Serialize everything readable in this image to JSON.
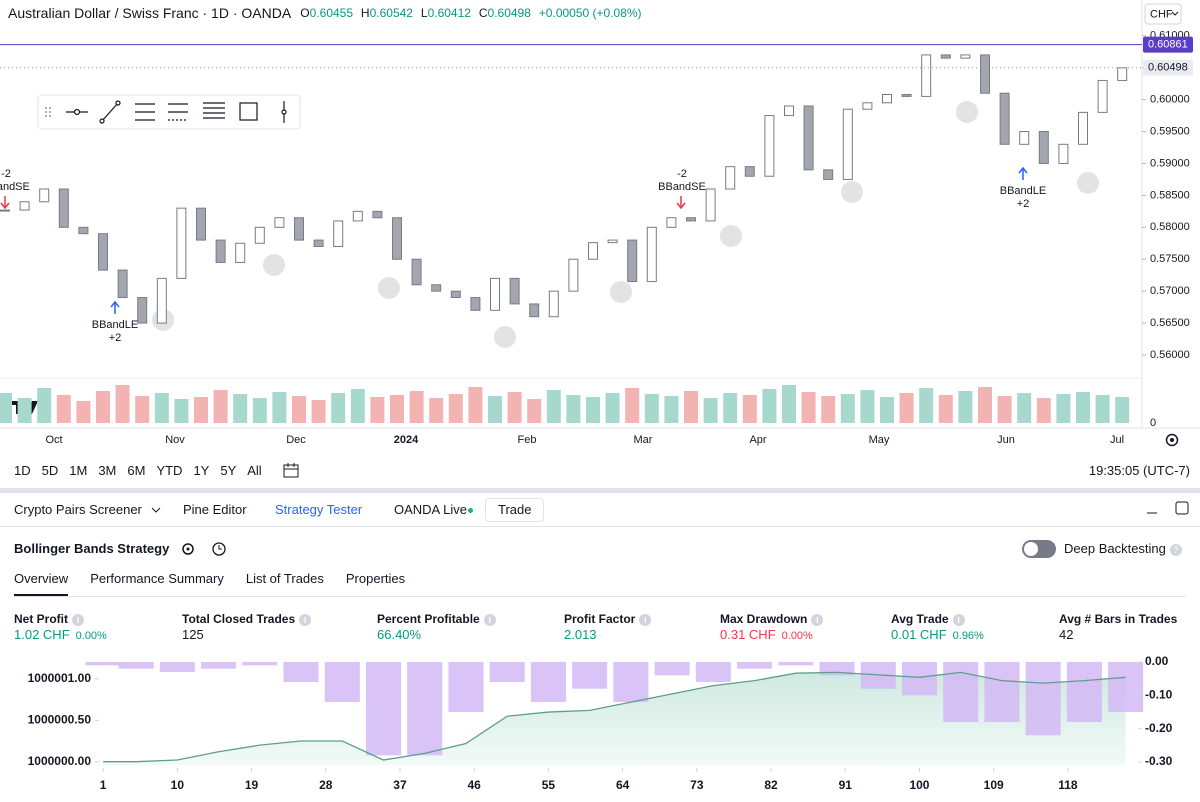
{
  "header": {
    "symbol": "Australian Dollar / Swiss Franc · 1D · OANDA",
    "ohlc": [
      {
        "key": "O",
        "value": "0.60455"
      },
      {
        "key": "H",
        "value": "0.60542"
      },
      {
        "key": "L",
        "value": "0.60412"
      },
      {
        "key": "C",
        "value": "0.60498"
      }
    ],
    "change": "+0.00050 (+0.08%)",
    "currency": "CHF"
  },
  "chart_data": [
    {
      "type": "candlestick",
      "closes": [
        0.5827,
        0.584,
        0.586,
        0.58,
        0.579,
        0.5733,
        0.569,
        0.565,
        0.572,
        0.583,
        0.578,
        0.5745,
        0.5775,
        0.58,
        0.5815,
        0.578,
        0.577,
        0.581,
        0.5825,
        0.5815,
        0.575,
        0.571,
        0.57,
        0.569,
        0.567,
        0.572,
        0.568,
        0.566,
        0.57,
        0.575,
        0.5776,
        0.578,
        0.5715,
        0.58,
        0.5815,
        0.581,
        0.586,
        0.5895,
        0.588,
        0.5975,
        0.599,
        0.589,
        0.5875,
        0.5985,
        0.5995,
        0.6008,
        0.6005,
        0.607,
        0.6065,
        0.607,
        0.601,
        0.593,
        0.595,
        0.59,
        0.593,
        0.598,
        0.603,
        0.60498
      ],
      "up_color": "#ffffff",
      "down_color": "#a3a6af",
      "border_color": "#787b86",
      "ylim": [
        0.5564,
        0.6156
      ],
      "yticks": [
        {
          "value": 0.61,
          "label": "0.61000"
        },
        {
          "value": 0.605,
          "label": "0.60500"
        },
        {
          "value": 0.6,
          "label": "0.60000"
        },
        {
          "value": 0.595,
          "label": "0.59500"
        },
        {
          "value": 0.59,
          "label": "0.59000"
        },
        {
          "value": 0.585,
          "label": "0.58500"
        },
        {
          "value": 0.58,
          "label": "0.58000"
        },
        {
          "value": 0.575,
          "label": "0.57500"
        },
        {
          "value": 0.57,
          "label": "0.57000"
        },
        {
          "value": 0.565,
          "label": "0.56500"
        },
        {
          "value": 0.56,
          "label": "0.56000"
        }
      ],
      "price_labels": [
        {
          "value": 0.60861,
          "label": "0.60861",
          "color": "#5b3cc4"
        },
        {
          "value": 0.60498,
          "label": "0.60498",
          "color": "#e9ebf0"
        }
      ],
      "volume": {
        "values": [
          30,
          25,
          35,
          28,
          22,
          32,
          38,
          27,
          30,
          24,
          26,
          33,
          29,
          25,
          31,
          27,
          23,
          30,
          34,
          26,
          28,
          32,
          25,
          29,
          36,
          27,
          31,
          24,
          33,
          28,
          26,
          30,
          35,
          29,
          27,
          32,
          25,
          30,
          28,
          34,
          38,
          31,
          27,
          29,
          33,
          26,
          30,
          35,
          28,
          32,
          36,
          27,
          30,
          25,
          29,
          31,
          28,
          26
        ],
        "up_color": "#a7d8ce",
        "down_color": "#f4b3b3",
        "ylim": [
          0,
          50
        ],
        "yticks": [
          0
        ]
      },
      "x_labels": [
        "Oct",
        "Nov",
        "Dec",
        "2024",
        "Feb",
        "Mar",
        "Apr",
        "May",
        "Jun",
        "Jul"
      ],
      "annotations": [
        {
          "lines": [
            "-2",
            "BBandSE"
          ]
        },
        {
          "lines": [
            "BBandLE",
            "+2"
          ]
        },
        {
          "lines": [
            "-2",
            "BBandSE"
          ]
        },
        {
          "lines": [
            "BBandLE",
            "+2"
          ]
        }
      ]
    },
    {
      "type": "equity",
      "x": [
        1,
        5,
        10,
        15,
        20,
        25,
        30,
        35,
        40,
        45,
        50,
        55,
        60,
        65,
        70,
        75,
        80,
        85,
        90,
        95,
        100,
        105,
        110,
        115,
        120,
        125
      ],
      "equity": {
        "values": [
          1000000.0,
          1000000.0,
          1000000.02,
          1000000.12,
          1000000.2,
          1000000.25,
          1000000.25,
          1000000.02,
          1000000.1,
          1000000.22,
          1000000.55,
          1000000.6,
          1000000.62,
          1000000.72,
          1000000.82,
          1000000.92,
          1000000.98,
          1000001.07,
          1000001.08,
          1000001.05,
          1000001.02,
          1000001.08,
          1000000.98,
          1000000.95,
          1000000.98,
          1000001.02
        ],
        "color": "#5f9e8c"
      },
      "drawdown": {
        "values": [
          -0.01,
          -0.02,
          -0.03,
          -0.02,
          -0.01,
          -0.06,
          -0.12,
          -0.28,
          -0.28,
          -0.15,
          -0.06,
          -0.12,
          -0.08,
          -0.12,
          -0.04,
          -0.06,
          -0.02,
          -0.01,
          -0.04,
          -0.08,
          -0.1,
          -0.18,
          -0.18,
          -0.22,
          -0.18,
          -0.15
        ],
        "color": "#d3b9f6",
        "axis": "y2"
      },
      "xlim": [
        0.5,
        126.5
      ],
      "xticks": [
        1,
        10,
        19,
        28,
        37,
        46,
        55,
        64,
        73,
        82,
        91,
        100,
        109,
        118
      ],
      "ylim": [
        999999.96,
        1000001.29
      ],
      "yticks": [
        {
          "value": 1000000,
          "label": "1000000.00"
        },
        {
          "value": 1000000.5,
          "label": "1000000.50"
        },
        {
          "value": 1000001,
          "label": "1000001.00"
        }
      ],
      "y2lim": [
        -0.309,
        0.021
      ],
      "y2ticks": [
        {
          "value": 0,
          "label": "0.00"
        },
        {
          "value": -0.1,
          "label": "-0.10"
        },
        {
          "value": -0.2,
          "label": "-0.20"
        },
        {
          "value": -0.3,
          "label": "-0.30"
        }
      ]
    }
  ],
  "ranges": [
    "1D",
    "5D",
    "1M",
    "3M",
    "6M",
    "YTD",
    "1Y",
    "5Y",
    "All"
  ],
  "clock": "19:35:05 (UTC-7)",
  "tabs": [
    "Crypto Pairs Screener",
    "Pine Editor",
    "Strategy Tester",
    "OANDA Live",
    "Trade"
  ],
  "strategy": {
    "name": "Bollinger Bands Strategy",
    "deep_backtesting": "Deep Backtesting",
    "subtabs": [
      "Overview",
      "Performance Summary",
      "List of Trades",
      "Properties"
    ]
  },
  "metrics": [
    {
      "label": "Net Profit",
      "value": "1.02 CHF",
      "percent": "0.00%"
    },
    {
      "label": "Total Closed Trades",
      "value": "125"
    },
    {
      "label": "Percent Profitable",
      "value": "66.40%"
    },
    {
      "label": "Profit Factor",
      "value": "2.013"
    },
    {
      "label": "Max Drawdown",
      "value": "0.31 CHF",
      "percent": "0.00%"
    },
    {
      "label": "Avg Trade",
      "value": "0.01 CHF",
      "percent": "0.96%"
    },
    {
      "label": "Avg # Bars in Trades",
      "value": "42"
    }
  ]
}
